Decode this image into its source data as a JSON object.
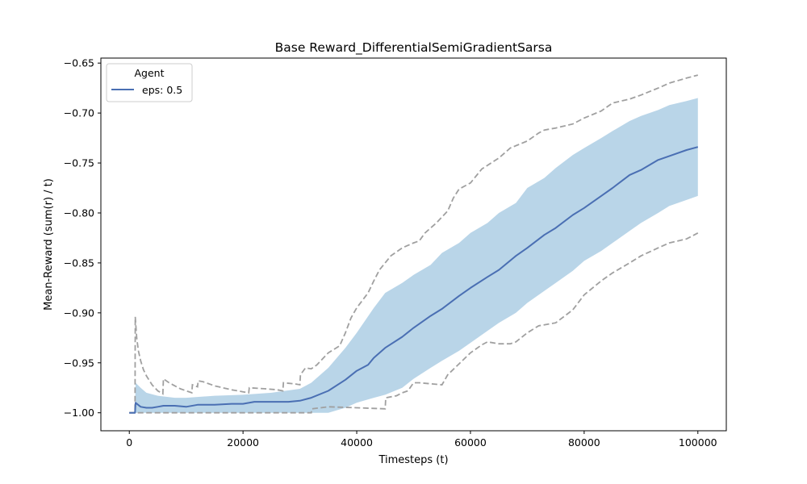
{
  "chart_data": {
    "type": "line",
    "title": "Base Reward_DifferentialSemiGradientSarsa",
    "xlabel": "Timesteps (t)",
    "ylabel": "Mean-Reward (sum(r) / t)",
    "xlim": [
      -5000,
      105000
    ],
    "ylim": [
      -1.018,
      -0.645
    ],
    "xticks": [
      0,
      20000,
      40000,
      60000,
      80000,
      100000
    ],
    "xtick_labels": [
      "0",
      "20000",
      "40000",
      "60000",
      "80000",
      "100000"
    ],
    "yticks": [
      -1.0,
      -0.95,
      -0.9,
      -0.85,
      -0.8,
      -0.75,
      -0.7,
      -0.65
    ],
    "ytick_labels": [
      "−1.00",
      "−0.95",
      "−0.90",
      "−0.85",
      "−0.80",
      "−0.75",
      "−0.70",
      "−0.65"
    ],
    "grid": false,
    "legend": {
      "title": "Agent",
      "location": "upper-left",
      "entries": [
        "eps: 0.5"
      ]
    },
    "colors": {
      "mean_line": "#4a6fb3",
      "band_fill": "#b9d5e8",
      "extreme_lines": "#a0a0a0"
    },
    "series": [
      {
        "name": "eps: 0.5",
        "role": "mean",
        "x": [
          0,
          1000,
          1100,
          2000,
          3000,
          4000,
          5000,
          6000,
          8000,
          10000,
          12000,
          15000,
          18000,
          20000,
          22000,
          25000,
          28000,
          30000,
          32000,
          35000,
          38000,
          40000,
          42000,
          43000,
          45000,
          48000,
          50000,
          53000,
          55000,
          58000,
          60000,
          63000,
          65000,
          68000,
          70000,
          73000,
          75000,
          78000,
          80000,
          83000,
          85000,
          88000,
          90000,
          93000,
          95000,
          98000,
          100000
        ],
        "y": [
          -1.0,
          -1.0,
          -0.99,
          -0.994,
          -0.995,
          -0.995,
          -0.994,
          -0.993,
          -0.993,
          -0.994,
          -0.992,
          -0.992,
          -0.991,
          -0.991,
          -0.989,
          -0.989,
          -0.989,
          -0.988,
          -0.985,
          -0.978,
          -0.967,
          -0.958,
          -0.952,
          -0.945,
          -0.935,
          -0.924,
          -0.915,
          -0.903,
          -0.896,
          -0.883,
          -0.875,
          -0.864,
          -0.857,
          -0.843,
          -0.835,
          -0.822,
          -0.815,
          -0.802,
          -0.795,
          -0.783,
          -0.775,
          -0.762,
          -0.757,
          -0.747,
          -0.743,
          -0.737,
          -0.734
        ]
      },
      {
        "name": "",
        "role": "band",
        "x": [
          0,
          1000,
          1100,
          2000,
          3000,
          5000,
          8000,
          10000,
          15000,
          20000,
          25000,
          30000,
          32000,
          35000,
          38000,
          40000,
          43000,
          45000,
          48000,
          50000,
          53000,
          55000,
          58000,
          60000,
          63000,
          65000,
          68000,
          70000,
          73000,
          75000,
          78000,
          80000,
          83000,
          85000,
          88000,
          90000,
          93000,
          95000,
          98000,
          100000
        ],
        "lower": [
          -1.0,
          -1.0,
          -1.0,
          -1.0,
          -1.0,
          -1.0,
          -1.0,
          -1.0,
          -1.0,
          -1.0,
          -1.0,
          -1.0,
          -1.0,
          -1.0,
          -0.995,
          -0.99,
          -0.985,
          -0.982,
          -0.975,
          -0.966,
          -0.955,
          -0.948,
          -0.938,
          -0.93,
          -0.918,
          -0.91,
          -0.9,
          -0.89,
          -0.878,
          -0.87,
          -0.858,
          -0.848,
          -0.838,
          -0.83,
          -0.818,
          -0.81,
          -0.8,
          -0.793,
          -0.787,
          -0.783
        ],
        "upper": [
          -1.0,
          -1.0,
          -0.97,
          -0.975,
          -0.98,
          -0.983,
          -0.985,
          -0.985,
          -0.983,
          -0.982,
          -0.98,
          -0.976,
          -0.97,
          -0.955,
          -0.935,
          -0.92,
          -0.895,
          -0.88,
          -0.87,
          -0.862,
          -0.852,
          -0.84,
          -0.83,
          -0.82,
          -0.81,
          -0.8,
          -0.79,
          -0.775,
          -0.765,
          -0.755,
          -0.742,
          -0.735,
          -0.725,
          -0.718,
          -0.708,
          -0.703,
          -0.697,
          -0.692,
          -0.688,
          -0.685
        ]
      },
      {
        "name": "",
        "role": "max",
        "x": [
          0,
          1000,
          1050,
          1300,
          1600,
          2000,
          2500,
          3000,
          4000,
          5000,
          5900,
          6000,
          7000,
          8000,
          9000,
          10000,
          11000,
          11100,
          12000,
          12100,
          13000,
          15000,
          18000,
          20000,
          21000,
          21100,
          24000,
          26000,
          27000,
          27100,
          29000,
          30000,
          30100,
          31000,
          32000,
          33000,
          35000,
          37000,
          38000,
          39000,
          40000,
          42000,
          43000,
          44000,
          46000,
          48000,
          50000,
          51000,
          52000,
          54000,
          56000,
          57000,
          58000,
          60000,
          62000,
          65000,
          67000,
          70000,
          72000,
          73000,
          75000,
          78000,
          80000,
          83000,
          85000,
          88000,
          90000,
          93000,
          95000,
          98000,
          100000
        ],
        "y": [
          -1.0,
          -1.0,
          -0.904,
          -0.925,
          -0.938,
          -0.948,
          -0.957,
          -0.963,
          -0.972,
          -0.978,
          -0.981,
          -0.966,
          -0.97,
          -0.973,
          -0.976,
          -0.978,
          -0.98,
          -0.972,
          -0.974,
          -0.968,
          -0.969,
          -0.973,
          -0.977,
          -0.979,
          -0.98,
          -0.975,
          -0.976,
          -0.977,
          -0.978,
          -0.97,
          -0.971,
          -0.972,
          -0.962,
          -0.955,
          -0.956,
          -0.952,
          -0.94,
          -0.933,
          -0.92,
          -0.905,
          -0.895,
          -0.88,
          -0.868,
          -0.857,
          -0.843,
          -0.835,
          -0.83,
          -0.828,
          -0.82,
          -0.81,
          -0.798,
          -0.785,
          -0.776,
          -0.77,
          -0.756,
          -0.745,
          -0.735,
          -0.728,
          -0.72,
          -0.717,
          -0.715,
          -0.711,
          -0.705,
          -0.698,
          -0.69,
          -0.686,
          -0.682,
          -0.675,
          -0.67,
          -0.665,
          -0.662
        ]
      },
      {
        "name": "",
        "role": "min",
        "x": [
          0,
          30000,
          31000,
          32000,
          32100,
          35000,
          40000,
          45000,
          45100,
          47000,
          48000,
          49000,
          50000,
          51000,
          55000,
          56000,
          58000,
          60000,
          62000,
          63000,
          65000,
          67000,
          68000,
          70000,
          72000,
          75000,
          78000,
          80000,
          83000,
          85000,
          88000,
          90000,
          93000,
          95000,
          98000,
          100000
        ],
        "y": [
          -1.0,
          -1.0,
          -1.0,
          -1.0,
          -0.996,
          -0.994,
          -0.995,
          -0.996,
          -0.985,
          -0.983,
          -0.98,
          -0.978,
          -0.97,
          -0.97,
          -0.972,
          -0.962,
          -0.951,
          -0.94,
          -0.932,
          -0.929,
          -0.931,
          -0.931,
          -0.929,
          -0.92,
          -0.913,
          -0.91,
          -0.897,
          -0.882,
          -0.868,
          -0.86,
          -0.85,
          -0.843,
          -0.835,
          -0.83,
          -0.826,
          -0.82
        ]
      }
    ]
  }
}
